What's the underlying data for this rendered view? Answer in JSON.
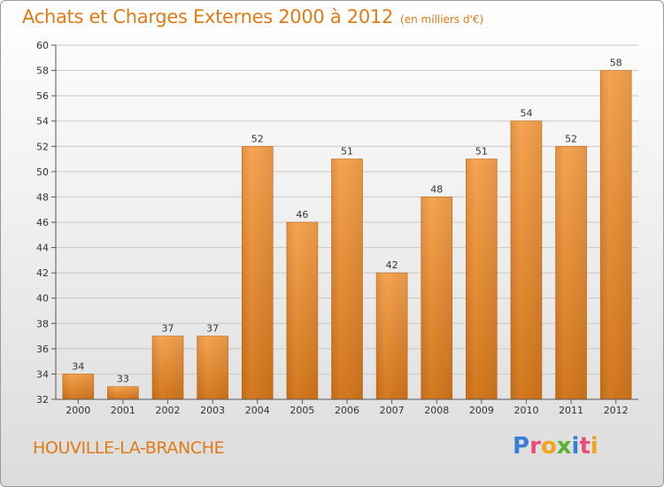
{
  "title": "Achats et Charges Externes 2000 à 2012",
  "subtitle": "(en milliers d'€)",
  "commune": "HOUVILLE-LA-BRANCHE",
  "logo": {
    "text": "Proxiti",
    "letters": [
      {
        "ch": "P",
        "color": "#3a7fd6"
      },
      {
        "ch": "r",
        "color": "#e84b7a"
      },
      {
        "ch": "o",
        "color": "#f0a31b"
      },
      {
        "ch": "x",
        "color": "#5ab132"
      },
      {
        "ch": "i",
        "color": "#3a7fd6"
      },
      {
        "ch": "t",
        "color": "#e84b7a"
      },
      {
        "ch": "i",
        "color": "#f0a31b"
      }
    ]
  },
  "colors": {
    "accent": "#e07b16",
    "bar_light": "#f7a450",
    "bar_dark": "#d4781e",
    "grid": "#c8c8c8",
    "axis": "#555555"
  },
  "chart_data": {
    "type": "bar",
    "categories": [
      "2000",
      "2001",
      "2002",
      "2003",
      "2004",
      "2005",
      "2006",
      "2007",
      "2008",
      "2009",
      "2010",
      "2011",
      "2012"
    ],
    "values": [
      34,
      33,
      37,
      37,
      52,
      46,
      51,
      42,
      48,
      51,
      54,
      52,
      58
    ],
    "data_labels": [
      "34",
      "33",
      "37",
      "37",
      "52",
      "46",
      "51",
      "42",
      "48",
      "51",
      "54",
      "52",
      "58"
    ],
    "title": "Achats et Charges Externes 2000 à 2012",
    "xlabel": "",
    "ylabel": "",
    "ylim": [
      32,
      60
    ],
    "yticks": [
      32,
      34,
      36,
      38,
      40,
      42,
      44,
      46,
      48,
      50,
      52,
      54,
      56,
      58,
      60
    ],
    "ytick_labels": [
      "32",
      "34",
      "36",
      "38",
      "40",
      "42",
      "44",
      "46",
      "48",
      "50",
      "52",
      "54",
      "56",
      "58",
      "60"
    ],
    "grid": true,
    "legend": "none"
  }
}
